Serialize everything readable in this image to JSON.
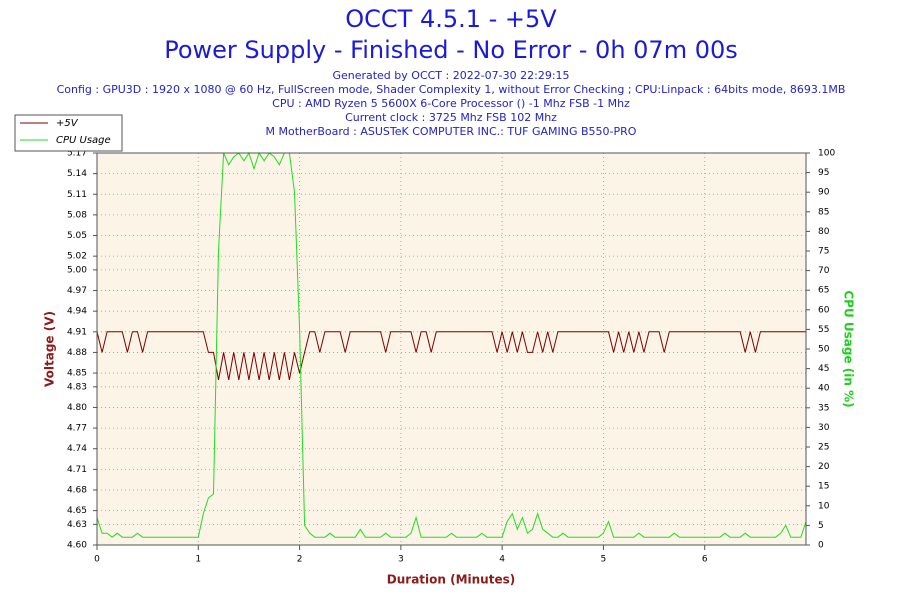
{
  "chart_data": {
    "type": "line",
    "title": "OCCT 4.5.1 - +5V",
    "subtitle": "Power Supply - Finished - No Error - 0h 07m 00s",
    "info": [
      "Generated by OCCT : 2022-07-30 22:29:15",
      "Config : GPU3D : 1920 x 1080 @ 60 Hz, FullScreen mode, Shader Complexity 1, without Error Checking ; CPU:Linpack : 64bits mode, 8693.1MB",
      "CPU : AMD Ryzen 5 5600X 6-Core Processor () -1 Mhz FSB -1 Mhz",
      "Current clock : 3725 Mhz FSB 102 Mhz",
      "M MotherBoard : ASUSTeK COMPUTER INC.: TUF GAMING B550-PRO"
    ],
    "x_label": "Duration (Minutes)",
    "y_label": "Voltage (V)",
    "y2_label": "CPU Usage (in %)",
    "grid": true,
    "xlim": [
      0,
      7
    ],
    "xticks": [
      0,
      1,
      2,
      3,
      4,
      5,
      6
    ],
    "ylim": [
      4.6,
      5.17
    ],
    "yticks": [
      {
        "value": 4.6,
        "label": "4.60"
      },
      4.63,
      4.65,
      4.68,
      4.71,
      4.74,
      4.77,
      {
        "value": 4.8,
        "label": "4.80"
      },
      4.83,
      4.85,
      4.88,
      4.91,
      4.94,
      4.97,
      {
        "value": 5,
        "label": "5.00"
      },
      5.02,
      5.05,
      5.08,
      5.11,
      5.14,
      5.17
    ],
    "y2lim": [
      0,
      100
    ],
    "y2ticks": [
      0,
      5,
      10,
      15,
      20,
      25,
      30,
      35,
      40,
      45,
      50,
      55,
      60,
      65,
      70,
      75,
      80,
      85,
      90,
      95,
      100
    ],
    "x": [
      0,
      0.05,
      0.1,
      0.15,
      0.2,
      0.25,
      0.3,
      0.35,
      0.4,
      0.45,
      0.5,
      0.55,
      0.6,
      0.65,
      0.7,
      0.75,
      0.8,
      0.85,
      0.9,
      0.95,
      1,
      1.05,
      1.1,
      1.15,
      1.2,
      1.25,
      1.3,
      1.35,
      1.4,
      1.45,
      1.5,
      1.55,
      1.6,
      1.65,
      1.7,
      1.75,
      1.8,
      1.85,
      1.9,
      1.95,
      2,
      2.05,
      2.1,
      2.15,
      2.2,
      2.25,
      2.3,
      2.35,
      2.4,
      2.45,
      2.5,
      2.55,
      2.6,
      2.65,
      2.7,
      2.75,
      2.8,
      2.85,
      2.9,
      2.95,
      3,
      3.05,
      3.1,
      3.15,
      3.2,
      3.25,
      3.3,
      3.35,
      3.4,
      3.45,
      3.5,
      3.55,
      3.6,
      3.65,
      3.7,
      3.75,
      3.8,
      3.85,
      3.9,
      3.95,
      4,
      4.05,
      4.1,
      4.15,
      4.2,
      4.25,
      4.3,
      4.35,
      4.4,
      4.45,
      4.5,
      4.55,
      4.6,
      4.65,
      4.7,
      4.75,
      4.8,
      4.85,
      4.9,
      4.95,
      5,
      5.05,
      5.1,
      5.15,
      5.2,
      5.25,
      5.3,
      5.35,
      5.4,
      5.45,
      5.5,
      5.55,
      5.6,
      5.65,
      5.7,
      5.75,
      5.8,
      5.85,
      5.9,
      5.95,
      6,
      6.05,
      6.1,
      6.15,
      6.2,
      6.25,
      6.3,
      6.35,
      6.4,
      6.45,
      6.5,
      6.55,
      6.6,
      6.65,
      6.7,
      6.75,
      6.8,
      6.85,
      6.9,
      6.95,
      7
    ],
    "series": [
      {
        "name": "+5V",
        "color": "#800000",
        "values": [
          4.91,
          4.88,
          4.91,
          4.91,
          4.91,
          4.91,
          4.88,
          4.91,
          4.91,
          4.88,
          4.91,
          4.91,
          4.91,
          4.91,
          4.91,
          4.91,
          4.91,
          4.91,
          4.91,
          4.91,
          4.91,
          4.91,
          4.88,
          4.88,
          4.84,
          4.88,
          4.84,
          4.88,
          4.84,
          4.88,
          4.84,
          4.88,
          4.84,
          4.88,
          4.84,
          4.88,
          4.84,
          4.88,
          4.84,
          4.88,
          4.85,
          4.88,
          4.91,
          4.91,
          4.88,
          4.91,
          4.91,
          4.91,
          4.91,
          4.88,
          4.91,
          4.91,
          4.91,
          4.91,
          4.91,
          4.91,
          4.91,
          4.88,
          4.91,
          4.91,
          4.91,
          4.91,
          4.91,
          4.88,
          4.91,
          4.91,
          4.88,
          4.91,
          4.91,
          4.91,
          4.91,
          4.91,
          4.91,
          4.91,
          4.91,
          4.91,
          4.91,
          4.91,
          4.91,
          4.88,
          4.91,
          4.88,
          4.91,
          4.88,
          4.91,
          4.88,
          4.88,
          4.91,
          4.88,
          4.91,
          4.88,
          4.91,
          4.91,
          4.91,
          4.91,
          4.91,
          4.91,
          4.91,
          4.91,
          4.91,
          4.91,
          4.91,
          4.88,
          4.91,
          4.88,
          4.91,
          4.88,
          4.91,
          4.88,
          4.91,
          4.91,
          4.91,
          4.88,
          4.91,
          4.91,
          4.91,
          4.91,
          4.91,
          4.91,
          4.91,
          4.91,
          4.91,
          4.91,
          4.91,
          4.91,
          4.91,
          4.91,
          4.91,
          4.88,
          4.91,
          4.88,
          4.91,
          4.91,
          4.91,
          4.91,
          4.91,
          4.91,
          4.91,
          4.91,
          4.91,
          4.91
        ]
      },
      {
        "name": "CPU Usage",
        "color": "#22dd22",
        "axis": "y2",
        "values": [
          7,
          3,
          3,
          2,
          3,
          2,
          2,
          2,
          3,
          2,
          2,
          2,
          2,
          2,
          2,
          2,
          2,
          2,
          2,
          2,
          2,
          8,
          12,
          13,
          75,
          100,
          97,
          99,
          100,
          98,
          100,
          96,
          100,
          98,
          100,
          99,
          97,
          100,
          100,
          90,
          55,
          5,
          3,
          2,
          2,
          2,
          3,
          2,
          2,
          2,
          2,
          2,
          4,
          2,
          2,
          2,
          2,
          3,
          2,
          2,
          2,
          2,
          3,
          7,
          2,
          2,
          2,
          2,
          2,
          2,
          3,
          2,
          2,
          2,
          2,
          2,
          3,
          2,
          2,
          2,
          2,
          6,
          8,
          4,
          7,
          3,
          4,
          8,
          4,
          3,
          2,
          2,
          3,
          2,
          2,
          2,
          2,
          2,
          2,
          2,
          3,
          6,
          2,
          2,
          2,
          2,
          2,
          3,
          2,
          2,
          2,
          2,
          2,
          2,
          3,
          2,
          2,
          2,
          2,
          2,
          2,
          2,
          2,
          2,
          3,
          2,
          2,
          2,
          3,
          2,
          2,
          2,
          2,
          2,
          2,
          3,
          5,
          2,
          2,
          2,
          6
        ]
      }
    ]
  }
}
